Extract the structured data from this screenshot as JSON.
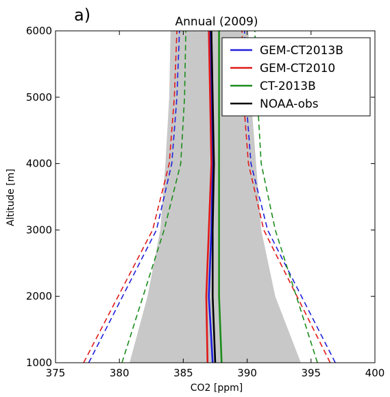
{
  "panel_label": "a)",
  "chart_data": {
    "type": "line",
    "title": "Annual (2009)",
    "xlabel": "CO2 [ppm]",
    "ylabel": "Altitude [m]",
    "xlim": [
      375,
      400
    ],
    "ylim": [
      1000,
      6000
    ],
    "xticks": [
      375,
      380,
      385,
      390,
      395,
      400
    ],
    "yticks": [
      1000,
      2000,
      3000,
      4000,
      5000,
      6000
    ],
    "grid": false,
    "legend_position": "top-right",
    "legend": [
      {
        "name": "GEM-CT2013B",
        "color": "#1f1fdc"
      },
      {
        "name": "GEM-CT2010",
        "color": "#e01818"
      },
      {
        "name": "CT-2013B",
        "color": "#1a8c1a"
      },
      {
        "name": "NOAA-obs",
        "color": "#000000"
      }
    ],
    "shaded_band": {
      "color": "#c8c8c8",
      "altitude": [
        1000,
        2000,
        3000,
        4000,
        5000,
        6000
      ],
      "lower": [
        380.8,
        382.2,
        383.2,
        383.6,
        383.9,
        384.0
      ],
      "upper": [
        394.2,
        392.2,
        391.1,
        390.7,
        390.3,
        390.1
      ]
    },
    "series": [
      {
        "name": "GEM-CT2013B",
        "color": "#1f1fdc",
        "style": "solid",
        "altitude": [
          1000,
          2000,
          3000,
          4000,
          5000,
          6000
        ],
        "values": [
          387.3,
          387.0,
          387.2,
          387.3,
          387.2,
          387.1
        ]
      },
      {
        "name": "GEM-CT2010",
        "color": "#e01818",
        "style": "solid",
        "altitude": [
          1000,
          2000,
          3000,
          4000,
          5000,
          6000
        ],
        "values": [
          386.9,
          386.8,
          387.0,
          387.2,
          387.1,
          387.0
        ]
      },
      {
        "name": "CT-2013B",
        "color": "#1a8c1a",
        "style": "solid",
        "altitude": [
          1000,
          2000,
          3000,
          4000,
          5000,
          6000
        ],
        "values": [
          388.0,
          387.8,
          387.8,
          387.8,
          387.8,
          387.8
        ]
      },
      {
        "name": "NOAA-obs",
        "color": "#000000",
        "style": "solid",
        "altitude": [
          1000,
          2000,
          3000,
          4000,
          5000,
          6000
        ],
        "values": [
          387.5,
          387.3,
          387.3,
          387.4,
          387.3,
          387.2
        ]
      },
      {
        "name": "GEM-CT2013B dashed",
        "color": "#1f1fdc",
        "style": "dashed",
        "altitude": [
          1000,
          3000,
          4000,
          5000,
          6000
        ],
        "values": [
          377.6,
          382.9,
          384.1,
          384.5,
          384.7
        ]
      },
      {
        "name": "GEM-CT2010 dashed",
        "color": "#e01818",
        "style": "dashed",
        "altitude": [
          1000,
          3000,
          4000,
          5000,
          6000
        ],
        "values": [
          377.2,
          382.6,
          383.9,
          384.3,
          384.5
        ]
      },
      {
        "name": "CT-2013B dashed",
        "color": "#1a8c1a",
        "style": "dashed",
        "altitude": [
          1000,
          3000,
          4000,
          5000,
          6000
        ],
        "values": [
          380.2,
          383.5,
          384.8,
          385.1,
          385.2
        ]
      },
      {
        "name": "GEM-CT2013B dashed",
        "color": "#1f1fdc",
        "style": "dashed",
        "altitude": [
          1000,
          3000,
          4000,
          5000,
          6000
        ],
        "values": [
          396.9,
          391.6,
          390.3,
          389.9,
          389.8
        ]
      },
      {
        "name": "GEM-CT2010 dashed",
        "color": "#e01818",
        "style": "dashed",
        "altitude": [
          1000,
          3000,
          4000,
          5000,
          6000
        ],
        "values": [
          396.5,
          391.3,
          390.1,
          389.7,
          389.6
        ]
      },
      {
        "name": "CT-2013B dashed",
        "color": "#1a8c1a",
        "style": "dashed",
        "altitude": [
          1000,
          3000,
          4000,
          5000,
          6000
        ],
        "values": [
          395.5,
          392.2,
          391.1,
          390.8,
          390.6
        ]
      }
    ]
  }
}
